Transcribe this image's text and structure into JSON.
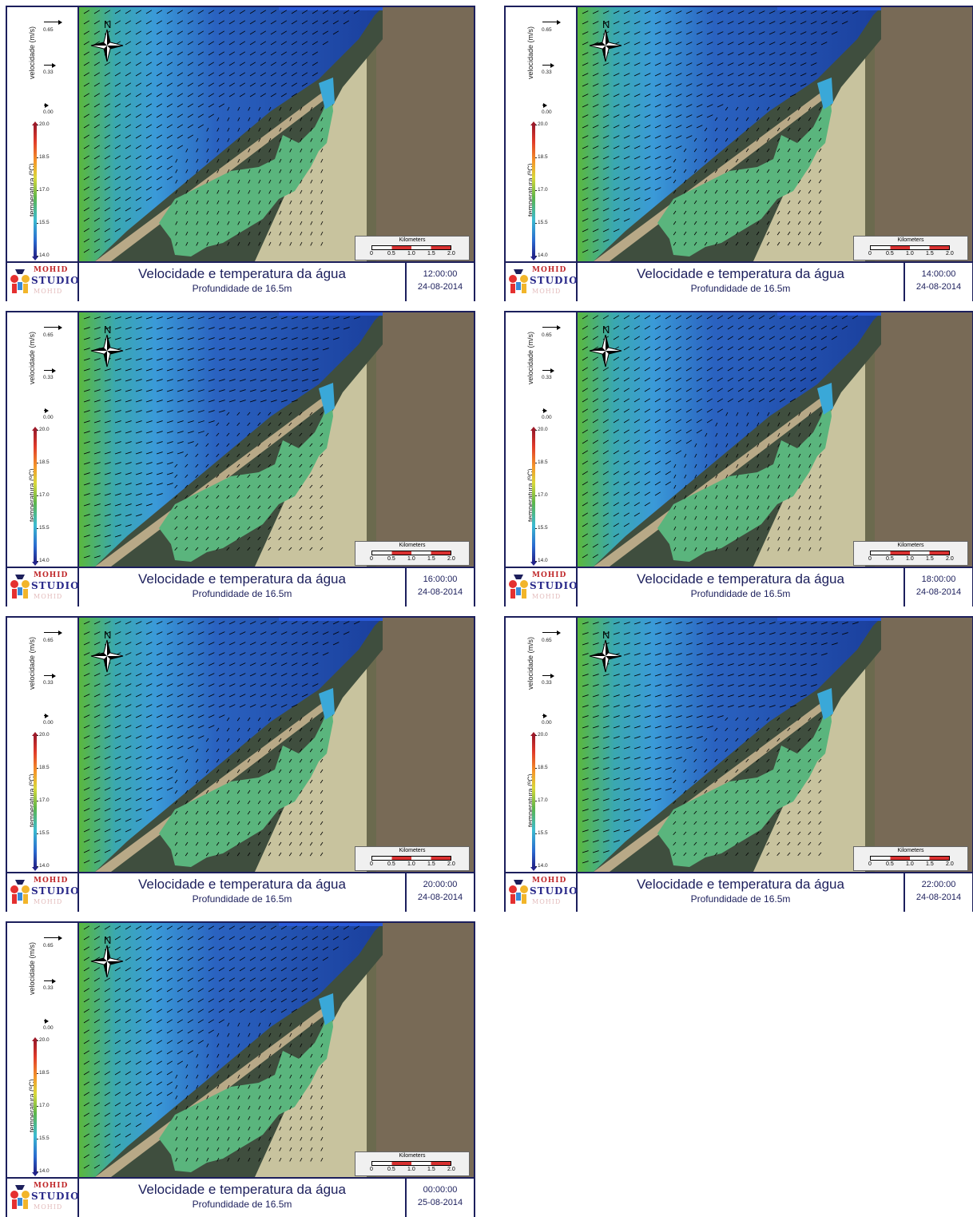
{
  "legend": {
    "velocity_label": "velocidade (m/s)",
    "velocity_refs": [
      "0.65",
      "0.33",
      "0.00"
    ],
    "temperature_label": "temperatura (ºC)",
    "temperature_ticks": [
      "20.0",
      "18.5",
      "17.0",
      "15.5",
      "14.0"
    ],
    "colors": [
      "#9e1b2a",
      "#e03a2a",
      "#f49a2a",
      "#d8d83a",
      "#5cb54a",
      "#3bbad0",
      "#2a6ad0",
      "#23248a"
    ]
  },
  "map": {
    "compass_letter": "N",
    "scale_title": "Kilometers",
    "scale_ticks": [
      "0",
      "0.5",
      "1.0",
      "1.5",
      "2.0"
    ],
    "water_shallow_color": "#5db87a",
    "water_deep_color": "#1a3e9c"
  },
  "footer": {
    "logo_top": "MOHID",
    "logo_mid": "STUDIO",
    "logo_bottom": "MOHID",
    "title": "Velocidade e temperatura da água",
    "subtitle": "Profundidade de 16.5m"
  },
  "frames": [
    {
      "time": "12:00:00",
      "date": "24-08-2014"
    },
    {
      "time": "14:00:00",
      "date": "24-08-2014"
    },
    {
      "time": "16:00:00",
      "date": "24-08-2014"
    },
    {
      "time": "18:00:00",
      "date": "24-08-2014"
    },
    {
      "time": "20:00:00",
      "date": "24-08-2014"
    },
    {
      "time": "22:00:00",
      "date": "24-08-2014"
    },
    {
      "time": "00:00:00",
      "date": "25-08-2014"
    }
  ]
}
